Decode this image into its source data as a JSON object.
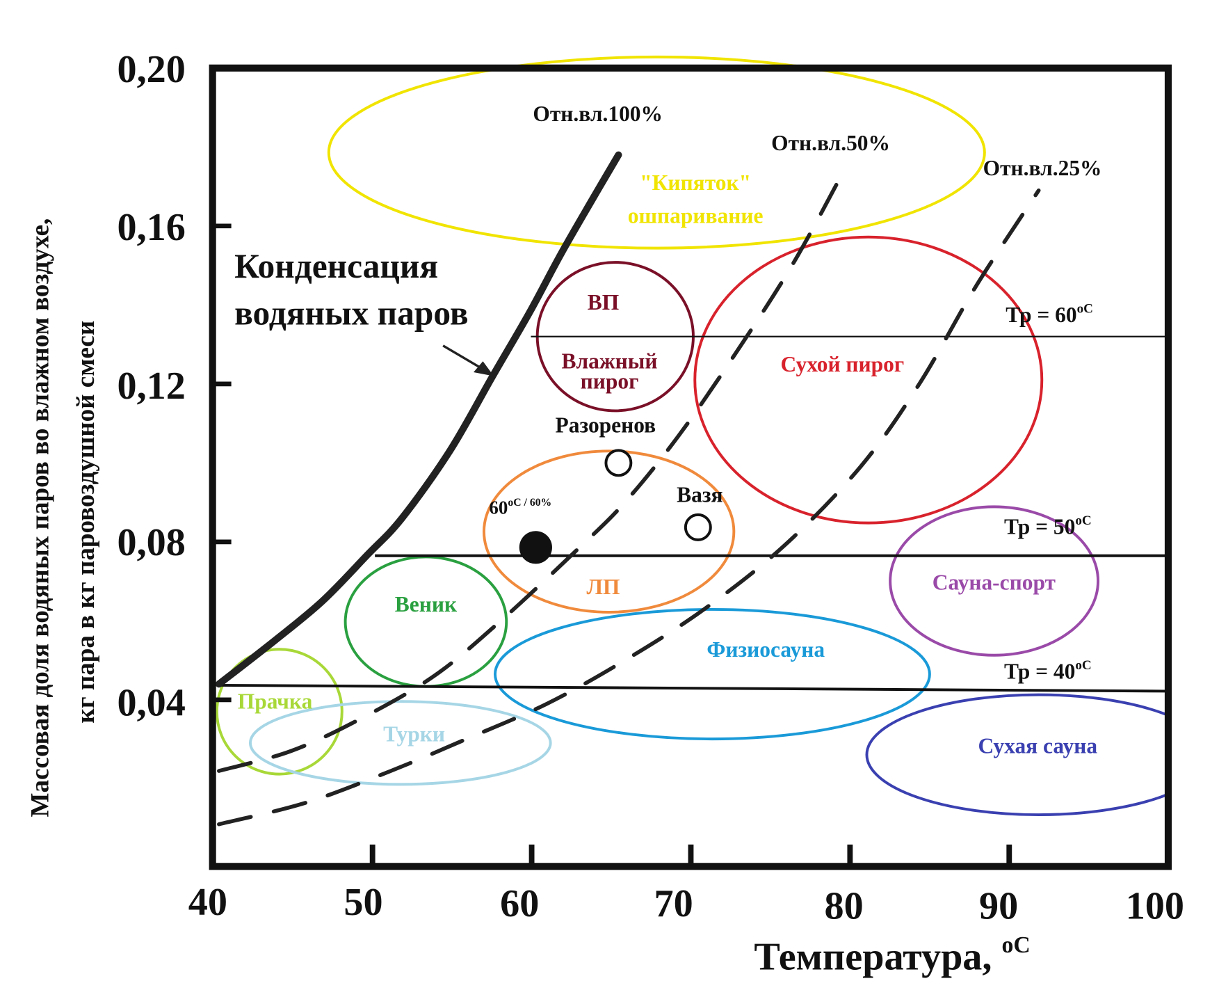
{
  "chart_data": {
    "type": "line",
    "title": "",
    "xlabel": "Температура, °C",
    "xlabel_main": "Температура,",
    "xlabel_unit": "oC",
    "ylabel_line1": "Массовая доля водяных паров во влажном воздухе,",
    "ylabel_line2": "кг пара в кг паровоздушной смеси",
    "xlim": [
      40,
      100
    ],
    "ylim": [
      0,
      0.2
    ],
    "x_ticks": [
      "40",
      "50",
      "60",
      "70",
      "80",
      "90",
      "100"
    ],
    "y_ticks": [
      "0,04",
      "0,08",
      "0,12",
      "0,16",
      "0,20"
    ],
    "grid": false,
    "series": [
      {
        "name": "Отн.вл.100%",
        "style": "solid",
        "points": [
          [
            40.5,
            0.044
          ],
          [
            44,
            0.055
          ],
          [
            47,
            0.065
          ],
          [
            49.8,
            0.0766
          ],
          [
            52,
            0.086
          ],
          [
            55,
            0.103
          ],
          [
            57.7,
            0.122
          ],
          [
            60,
            0.138
          ],
          [
            62,
            0.153
          ],
          [
            64,
            0.167
          ],
          [
            65.6,
            0.178
          ]
        ]
      },
      {
        "name": "Отн.вл.50%",
        "style": "dashed",
        "points": [
          [
            40.5,
            0.022
          ],
          [
            45,
            0.027
          ],
          [
            49.3,
            0.035
          ],
          [
            54,
            0.046
          ],
          [
            58.2,
            0.06
          ],
          [
            63,
            0.078
          ],
          [
            66,
            0.09
          ],
          [
            69.4,
            0.107
          ],
          [
            73,
            0.128
          ],
          [
            76.5,
            0.15
          ],
          [
            79.5,
            0.172
          ]
        ]
      },
      {
        "name": "Отн.вл.25%",
        "style": "dashed",
        "points": [
          [
            40.5,
            0.0085
          ],
          [
            46,
            0.014
          ],
          [
            51.3,
            0.022
          ],
          [
            56,
            0.03
          ],
          [
            61.1,
            0.039
          ],
          [
            66,
            0.05
          ],
          [
            71,
            0.063
          ],
          [
            76,
            0.079
          ],
          [
            80.8,
            0.099
          ],
          [
            84.5,
            0.12
          ],
          [
            88.1,
            0.145
          ],
          [
            92,
            0.169
          ]
        ]
      }
    ],
    "dew_lines": [
      {
        "label": "Тр = 60 °C",
        "text": "Тр = 60",
        "unit": "oC",
        "x_start": 60.1,
        "value": 0.132,
        "value_end": 0.132
      },
      {
        "label": "Тр = 50 °C",
        "text": "Тр = 50",
        "unit": "oC",
        "x_start": 50.3,
        "value": 0.0765,
        "value_end": 0.0765
      },
      {
        "label": "Тр = 40 °C",
        "text": "Тр = 40",
        "unit": "oC",
        "x_start": 40.5,
        "value": 0.0437,
        "value_end": 0.0422
      }
    ],
    "zones": [
      {
        "name": "Кипяток / ошпаривание",
        "label1": "\"Кипяток\"",
        "label2": "ошпаривание",
        "color": "#f0e400",
        "cx": 68.0,
        "cy": 0.1786,
        "rx": 20.6,
        "ry": 0.0242
      },
      {
        "name": "ВП / Влажный пирог",
        "label1": "ВП",
        "label2": "Влажный",
        "label3": "пирог",
        "color": "#7a1028",
        "cx": 65.4,
        "cy": 0.132,
        "rx": 4.9,
        "ry": 0.0188
      },
      {
        "name": "Сухой пирог",
        "label1": "Сухой пирог",
        "color": "#d8222c",
        "cx": 81.3,
        "cy": 0.121,
        "rx": 10.9,
        "ry": 0.0362
      },
      {
        "name": "ЛП",
        "label1": "ЛП",
        "color": "#f08a3c",
        "cx": 65.0,
        "cy": 0.0826,
        "rx": 7.85,
        "ry": 0.0204
      },
      {
        "name": "Веник",
        "label1": "Веник",
        "color": "#2aa040",
        "cx": 53.5,
        "cy": 0.0598,
        "rx": 5.06,
        "ry": 0.0164
      },
      {
        "name": "Сауна-спорт",
        "label1": "Сауна-спорт",
        "color": "#9a4aa8",
        "cx": 89.2,
        "cy": 0.0701,
        "rx": 6.53,
        "ry": 0.0188
      },
      {
        "name": "Физиосауна",
        "label1": "Физиосауна",
        "color": "#1a9ad8",
        "cx": 71.5,
        "cy": 0.0465,
        "rx": 13.65,
        "ry": 0.0164
      },
      {
        "name": "Прачка",
        "label1": "Прачка",
        "color": "#a8d838",
        "cx": 44.3,
        "cy": 0.037,
        "rx": 3.93,
        "ry": 0.0158
      },
      {
        "name": "Турки",
        "label1": "Турки",
        "color": "#a6d6e6",
        "cx": 51.9,
        "cy": 0.0291,
        "rx": 9.43,
        "ry": 0.0105
      },
      {
        "name": "Сухая сауна",
        "label1": "Сухая сауна",
        "color": "#3a40b0",
        "cx": 92.0,
        "cy": 0.0261,
        "rx": 10.8,
        "ry": 0.0152
      }
    ],
    "points": [
      {
        "name": "60 °C / 60%",
        "label": "60 °C / 60%",
        "label_num": "60",
        "label_unit": "oC / 60%",
        "x": 60.4,
        "y": 0.0786,
        "filled": true
      },
      {
        "name": "Разоренов",
        "label": "Разоренов",
        "x": 65.6,
        "y": 0.1,
        "filled": false
      },
      {
        "name": "Вазя",
        "label": "Вазя",
        "x": 70.6,
        "y": 0.0837,
        "filled": false
      }
    ],
    "annotations": {
      "condensation_line1": "Конденсация",
      "condensation_line2": "водяных паров"
    }
  }
}
